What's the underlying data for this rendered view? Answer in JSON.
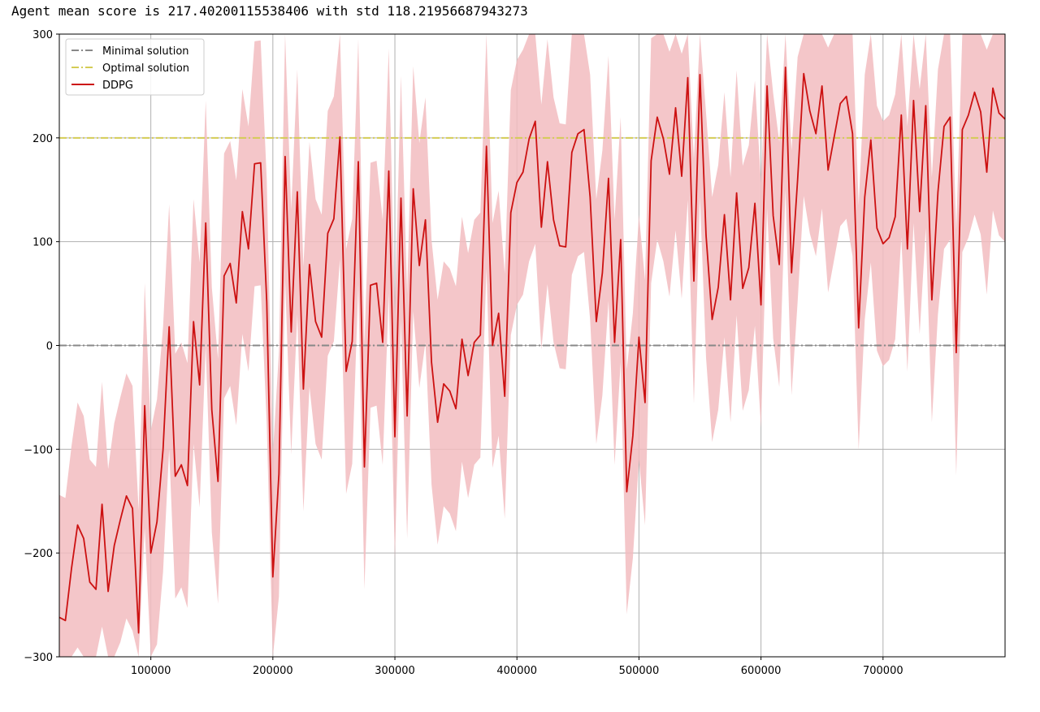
{
  "console": {
    "output_line": "Agent mean score is 217.40200115538406 with std 118.21956687943273"
  },
  "colors": {
    "ddpg_line": "#cc1111",
    "ddpg_band": "#f2bcbf",
    "minimal_line": "#888888",
    "optimal_line": "#d4cc55",
    "grid": "#b0b0b0"
  },
  "chart_data": {
    "type": "line",
    "xlim": [
      25000,
      800000
    ],
    "ylim": [
      -300,
      300
    ],
    "grid": true,
    "legend_position": "top-left",
    "x_ticks": [
      100000,
      200000,
      300000,
      400000,
      500000,
      600000,
      700000
    ],
    "y_ticks": [
      -300,
      -200,
      -100,
      0,
      100,
      200,
      300
    ],
    "x_tick_labels": [
      "100000",
      "200000",
      "300000",
      "400000",
      "500000",
      "600000",
      "700000"
    ],
    "y_tick_labels": [
      "−300",
      "−200",
      "−100",
      "0",
      "100",
      "200",
      "300"
    ],
    "legend": [
      "Minimal solution",
      "Optimal solution",
      "DDPG"
    ],
    "reference_lines": [
      {
        "name": "Minimal solution",
        "y": 0,
        "style": "dashdot"
      },
      {
        "name": "Optimal solution",
        "y": 200,
        "style": "dashdot"
      }
    ],
    "series": [
      {
        "name": "DDPG",
        "std": 118,
        "x": [
          25000,
          30000,
          35000,
          40000,
          45000,
          50000,
          55000,
          60000,
          65000,
          70000,
          75000,
          80000,
          85000,
          90000,
          95000,
          100000,
          105000,
          110000,
          115000,
          120000,
          125000,
          130000,
          135000,
          140000,
          145000,
          150000,
          155000,
          160000,
          165000,
          170000,
          175000,
          180000,
          185000,
          190000,
          195000,
          200000,
          205000,
          210000,
          215000,
          220000,
          225000,
          230000,
          235000,
          240000,
          245000,
          250000,
          255000,
          260000,
          265000,
          270000,
          275000,
          280000,
          285000,
          290000,
          295000,
          300000,
          305000,
          310000,
          315000,
          320000,
          325000,
          330000,
          335000,
          340000,
          345000,
          350000,
          355000,
          360000,
          365000,
          370000,
          375000,
          380000,
          385000,
          390000,
          395000,
          400000,
          405000,
          410000,
          415000,
          420000,
          425000,
          430000,
          435000,
          440000,
          445000,
          450000,
          455000,
          460000,
          465000,
          470000,
          475000,
          480000,
          485000,
          490000,
          495000,
          500000,
          505000,
          510000,
          515000,
          520000,
          525000,
          530000,
          535000,
          540000,
          545000,
          550000,
          555000,
          560000,
          565000,
          570000,
          575000,
          580000,
          585000,
          590000,
          595000,
          600000,
          605000,
          610000,
          615000,
          620000,
          625000,
          630000,
          635000,
          640000,
          645000,
          650000,
          655000,
          660000,
          665000,
          670000,
          675000,
          680000,
          685000,
          690000,
          695000,
          700000,
          705000,
          710000,
          715000,
          720000,
          725000,
          730000,
          735000,
          740000,
          745000,
          750000,
          755000,
          760000,
          765000,
          770000,
          775000,
          780000,
          785000,
          790000,
          795000,
          800000
        ],
        "y": [
          -262,
          -265,
          -215,
          -173,
          -186,
          -228,
          -235,
          -153,
          -237,
          -193,
          -168,
          -145,
          -157,
          -277,
          -58,
          -200,
          -170,
          -100,
          18,
          -126,
          -115,
          -135,
          23,
          -38,
          118,
          -62,
          -131,
          67,
          79,
          41,
          129,
          93,
          175,
          176,
          42,
          -223,
          -124,
          182,
          13,
          148,
          -42,
          78,
          23,
          8,
          108,
          122,
          201,
          -25,
          4,
          177,
          -117,
          58,
          60,
          3,
          168,
          -88,
          142,
          -68,
          151,
          77,
          121,
          -16,
          -74,
          -37,
          -44,
          -61,
          6,
          -29,
          3,
          10,
          192,
          0,
          31,
          -49,
          128,
          157,
          167,
          199,
          216,
          114,
          177,
          121,
          96,
          95,
          186,
          204,
          208,
          143,
          23,
          70,
          161,
          3,
          102,
          -141,
          -87,
          8,
          -55,
          178,
          220,
          199,
          165,
          229,
          163,
          258,
          62,
          261,
          106,
          25,
          56,
          126,
          44,
          147,
          55,
          75,
          137,
          39,
          250,
          125,
          78,
          268,
          70,
          160,
          262,
          226,
          204,
          250,
          169,
          201,
          233,
          240,
          204,
          17,
          143,
          198,
          113,
          98,
          104,
          124,
          222,
          93,
          236,
          129,
          231,
          44,
          148,
          211,
          220,
          -7,
          208,
          222,
          244,
          225,
          167,
          248,
          224,
          218
        ]
      }
    ]
  }
}
